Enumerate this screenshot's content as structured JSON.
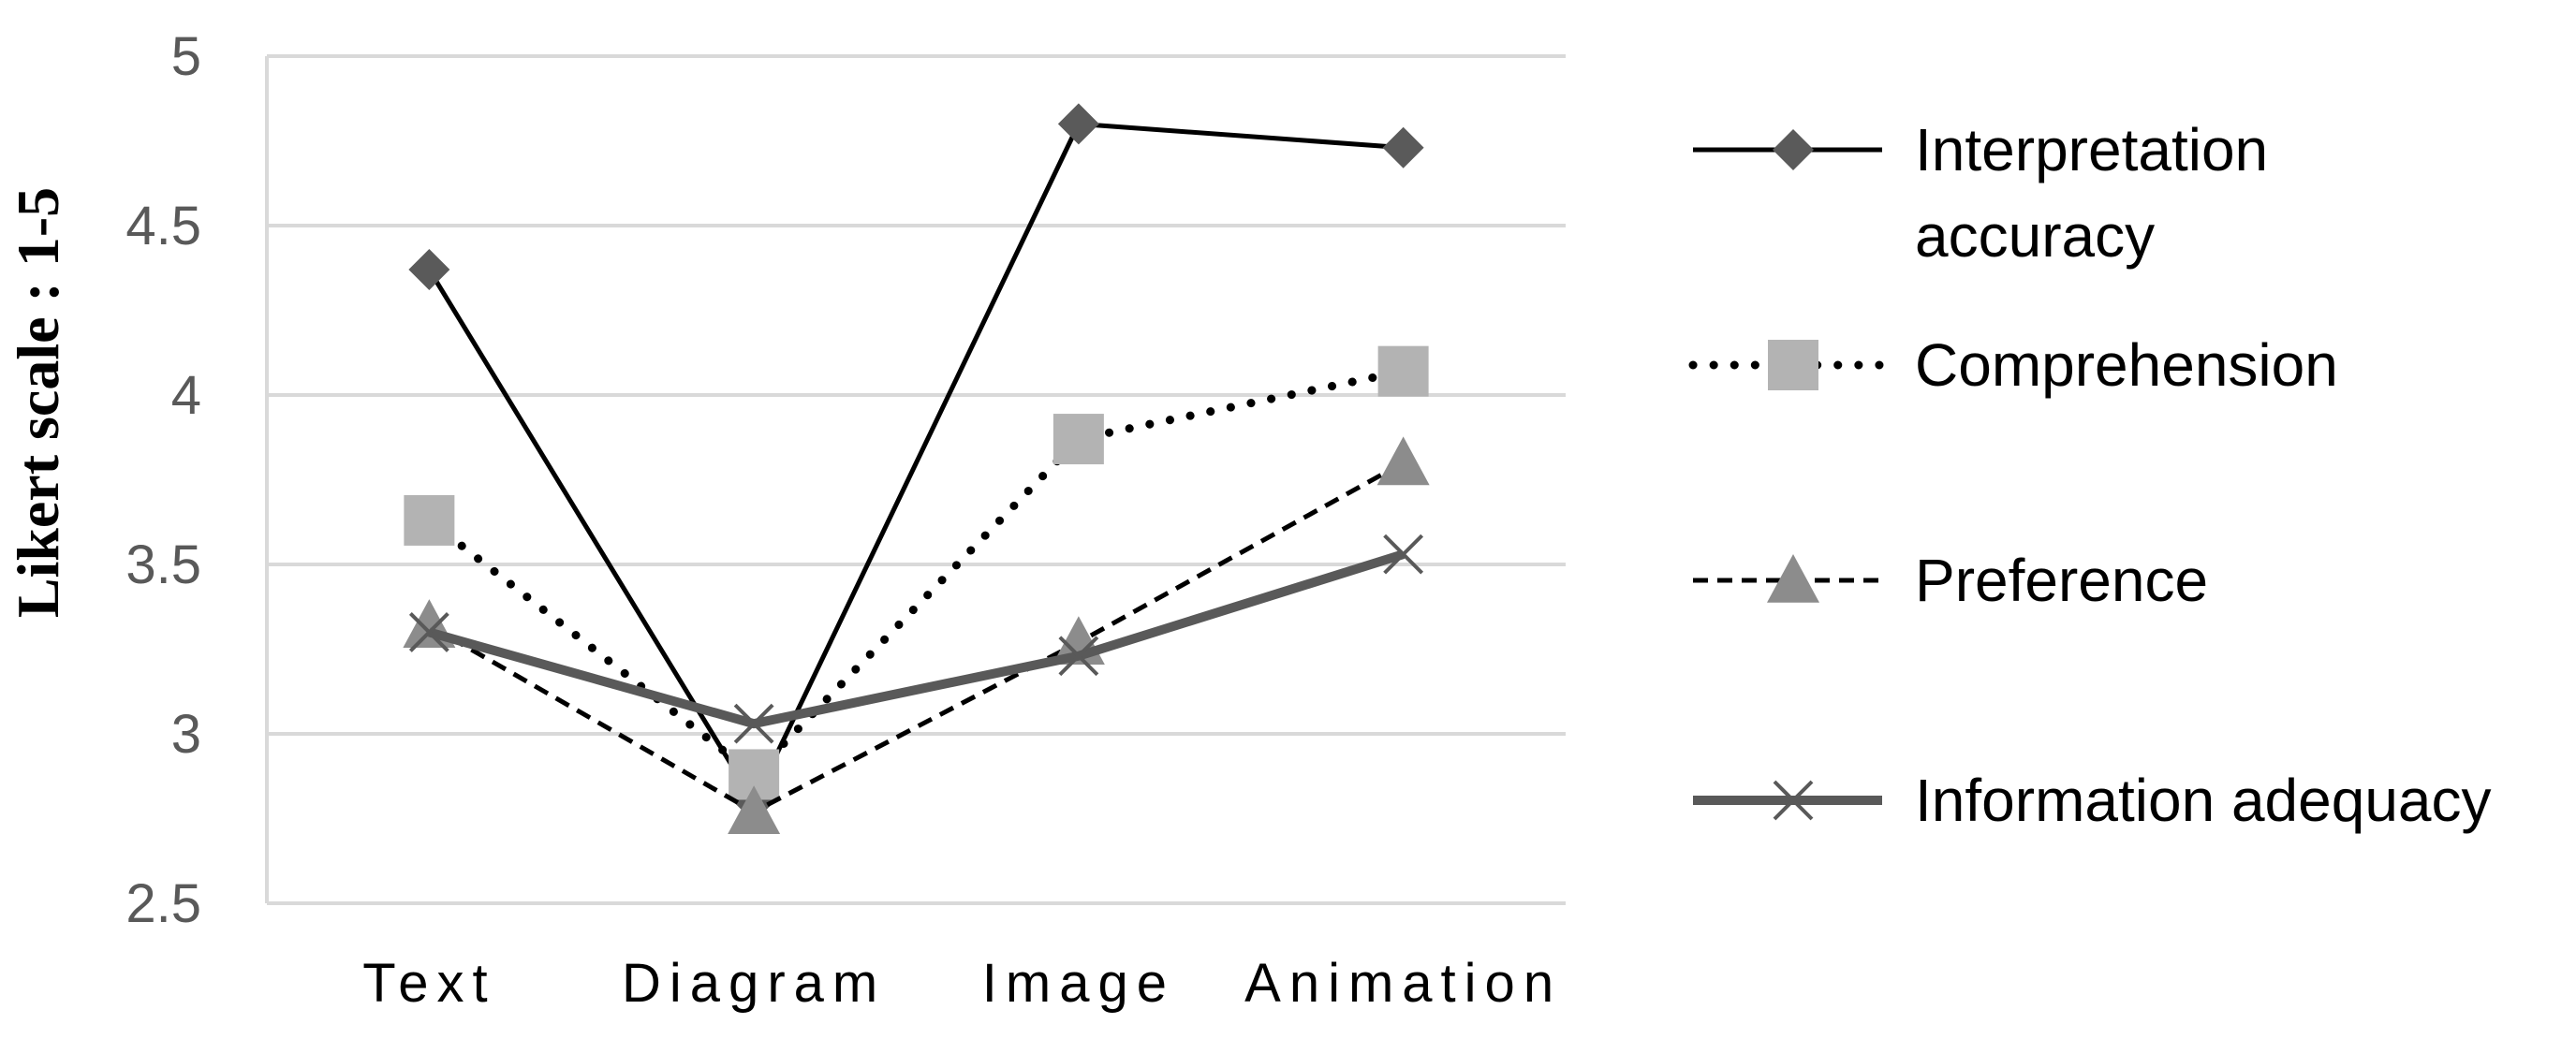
{
  "chart_data": {
    "type": "line",
    "title": "",
    "xlabel": "",
    "ylabel": "Likert scale : 1-5",
    "categories": [
      "Text",
      "Diagram",
      "Image",
      "Animation"
    ],
    "ylim": [
      2.5,
      5
    ],
    "yticks": [
      "2.5",
      "3",
      "3.5",
      "4",
      "4.5",
      "5"
    ],
    "grid": "horizontal",
    "legend_position": "right",
    "series": [
      {
        "name": "Interpretation accuracy",
        "legend_lines": [
          "Interpretation",
          "accuracy"
        ],
        "values": [
          4.37,
          2.8,
          4.8,
          4.73
        ],
        "marker": "diamond",
        "line_style": "solid",
        "color": "#000000",
        "marker_color": "#5a5a5a"
      },
      {
        "name": "Comprehension",
        "legend_lines": [
          "Comprehension"
        ],
        "values": [
          3.63,
          2.88,
          3.87,
          4.07
        ],
        "marker": "square",
        "line_style": "dotted",
        "color": "#000000",
        "marker_color": "#b3b3b3"
      },
      {
        "name": "Preference",
        "legend_lines": [
          "Preference"
        ],
        "values": [
          3.32,
          2.77,
          3.27,
          3.8
        ],
        "marker": "triangle",
        "line_style": "dashed",
        "color": "#000000",
        "marker_color": "#8c8c8c"
      },
      {
        "name": "Information adequacy",
        "legend_lines": [
          "Information adequacy"
        ],
        "values": [
          3.3,
          3.03,
          3.23,
          3.53
        ],
        "marker": "x",
        "line_style": "solid-thick",
        "color": "#595959",
        "marker_color": "#595959"
      }
    ]
  }
}
